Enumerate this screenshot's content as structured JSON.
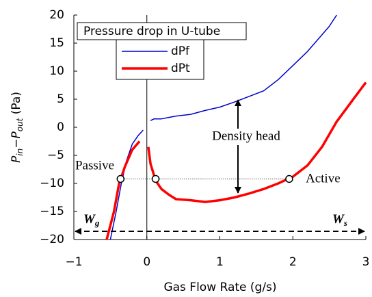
{
  "chart_data": {
    "type": "line",
    "legend_title": "Pressure drop in U-tube",
    "x_label": "Gas Flow Rate (g/s)",
    "y_label": [
      "P",
      "in",
      "−P",
      "out",
      " (Pa)"
    ],
    "xlim": [
      -1,
      3
    ],
    "ylim": [
      -20,
      20
    ],
    "xticks": [
      {
        "value": -1,
        "label": "−1"
      },
      0,
      1,
      2,
      3
    ],
    "yticks": [
      {
        "value": -20,
        "label": "−20"
      },
      {
        "value": -15,
        "label": "−15"
      },
      {
        "value": -10,
        "label": "−10"
      },
      {
        "value": -5,
        "label": "−5"
      },
      0,
      5,
      10,
      15,
      20
    ],
    "series": [
      {
        "name": "dPf",
        "color": "#0000cc",
        "x": [
          -0.5,
          -0.42,
          -0.35,
          -0.28,
          -0.2,
          -0.12,
          -0.05,
          null,
          0.05,
          0.1,
          0.2,
          0.4,
          0.6,
          0.8,
          1.0,
          1.2,
          1.4,
          1.6,
          1.8,
          2.0,
          2.2,
          2.4,
          2.5,
          2.6
        ],
        "y": [
          -20,
          -15,
          -10,
          -6,
          -3,
          -1.5,
          -0.5,
          null,
          1.2,
          1.5,
          1.5,
          2,
          2.3,
          3,
          3.6,
          4.5,
          5.5,
          6.5,
          8.5,
          11,
          13.5,
          16.5,
          18,
          20
        ]
      },
      {
        "name": "dPt",
        "color": "#ff0000",
        "x": [
          -0.55,
          -0.45,
          -0.38,
          -0.3,
          -0.2,
          -0.1,
          null,
          0.02,
          0.05,
          0.12,
          0.2,
          0.3,
          0.4,
          0.6,
          0.8,
          1.0,
          1.2,
          1.4,
          1.6,
          1.8,
          2.0,
          2.2,
          2.4,
          2.6,
          2.8,
          3.0
        ],
        "y": [
          -20,
          -15,
          -10,
          -7,
          -4,
          -2.5,
          null,
          -3.5,
          -6.5,
          -9.5,
          -11,
          -12,
          -12.8,
          -13,
          -13.3,
          -13,
          -12.5,
          -11.8,
          -11,
          -10,
          -8.8,
          -6.8,
          -3.5,
          1,
          4.5,
          8
        ]
      }
    ],
    "operating_points": {
      "x": [
        -0.36,
        0.12,
        1.95
      ],
      "y": [
        -9.2,
        -9.2,
        -9.2
      ]
    },
    "annotations": {
      "density_head": "Density head",
      "passive": "Passive",
      "active": "Active",
      "wg": [
        "W",
        "g"
      ],
      "ws": [
        "W",
        "s"
      ]
    }
  }
}
